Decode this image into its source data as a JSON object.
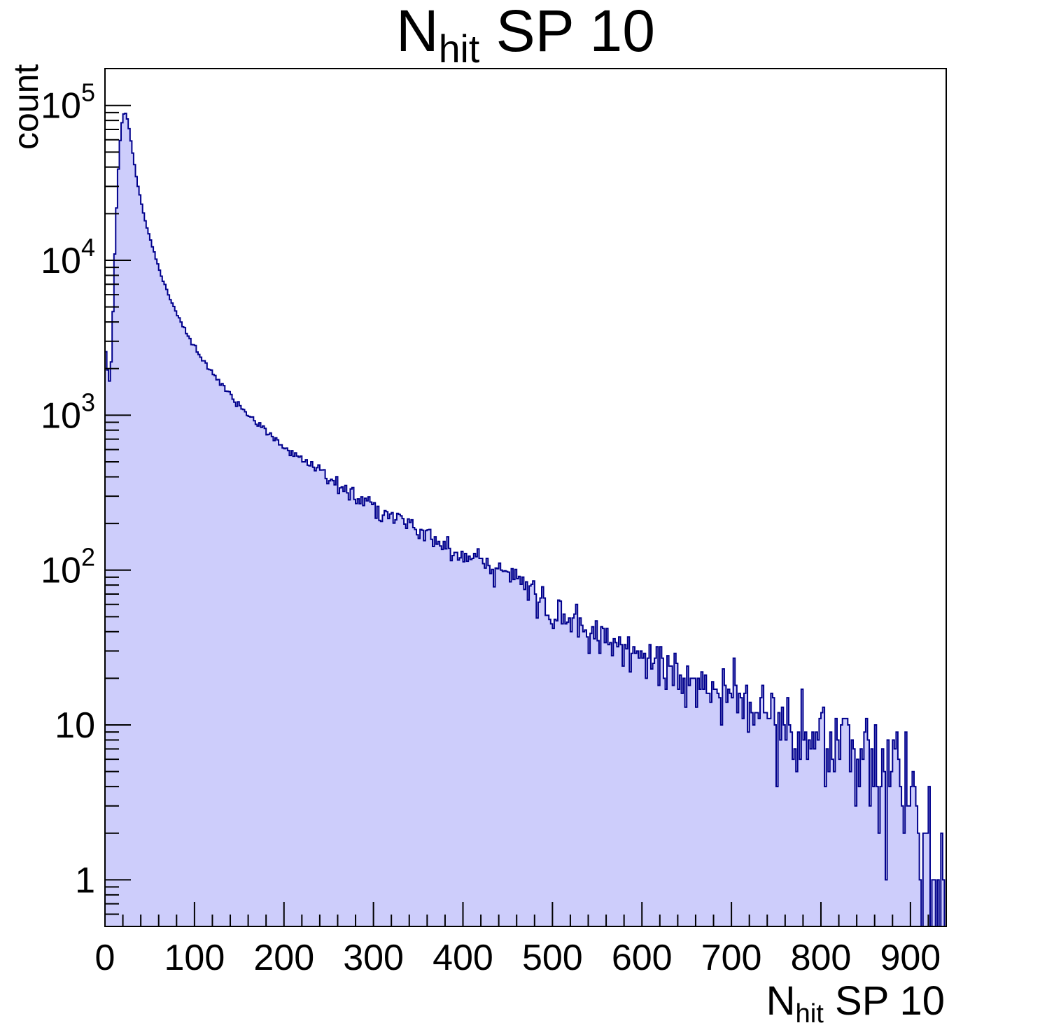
{
  "title": {
    "pre": "N",
    "sub": "hit",
    "post": " SP 10"
  },
  "y_axis": {
    "title": "count",
    "scale": "log",
    "labels": [
      {
        "mantissa": "1",
        "exp": "",
        "value": 1
      },
      {
        "mantissa": "10",
        "exp": "",
        "value": 10
      },
      {
        "mantissa": "10",
        "exp": "2",
        "value": 100
      },
      {
        "mantissa": "10",
        "exp": "3",
        "value": 1000
      },
      {
        "mantissa": "10",
        "exp": "4",
        "value": 10000
      },
      {
        "mantissa": "10",
        "exp": "5",
        "value": 100000
      }
    ]
  },
  "x_axis": {
    "title": {
      "pre": "N",
      "sub": "hit",
      "post": " SP 10"
    },
    "major_step": 100,
    "minor_step": 20,
    "labels": [
      {
        "text": "0",
        "value": 0
      },
      {
        "text": "100",
        "value": 100
      },
      {
        "text": "200",
        "value": 200
      },
      {
        "text": "300",
        "value": 300
      },
      {
        "text": "400",
        "value": 400
      },
      {
        "text": "500",
        "value": 500
      },
      {
        "text": "600",
        "value": 600
      },
      {
        "text": "700",
        "value": 700
      },
      {
        "text": "800",
        "value": 800
      },
      {
        "text": "900",
        "value": 900
      }
    ]
  },
  "colors": {
    "hist_fill": "#cdcdfb",
    "hist_line": "#00008c",
    "axis": "#000000",
    "background": "#ffffff",
    "text": "#000000"
  },
  "chart_data": {
    "type": "bar",
    "title": "N_hit SP 10",
    "xlabel": "N_hit SP 10",
    "ylabel": "count",
    "xlim": [
      0,
      940
    ],
    "ylim": [
      0.5,
      173000
    ],
    "yscale": "log",
    "grid": false,
    "legend": false,
    "bin_width": 2,
    "n_bins": 470,
    "peak": {
      "x": 21,
      "count": 91000
    },
    "first_bin": {
      "x": 1,
      "count": 2800
    },
    "dip": {
      "x": 5,
      "count": 1650
    },
    "noise_model": "poisson",
    "seed": 1337,
    "envelope_points": [
      [
        0,
        2800
      ],
      [
        2,
        2300
      ],
      [
        4,
        1700
      ],
      [
        6,
        1700
      ],
      [
        8,
        3000
      ],
      [
        10,
        7500
      ],
      [
        12,
        16000
      ],
      [
        14,
        30000
      ],
      [
        16,
        50000
      ],
      [
        18,
        70000
      ],
      [
        20,
        85000
      ],
      [
        22,
        91000
      ],
      [
        24,
        87000
      ],
      [
        26,
        77000
      ],
      [
        28,
        65000
      ],
      [
        30,
        54000
      ],
      [
        32,
        45000
      ],
      [
        34,
        38000
      ],
      [
        36,
        32500
      ],
      [
        38,
        28000
      ],
      [
        40,
        24500
      ],
      [
        44,
        19200
      ],
      [
        48,
        15500
      ],
      [
        52,
        12800
      ],
      [
        56,
        10700
      ],
      [
        60,
        9000
      ],
      [
        65,
        7400
      ],
      [
        70,
        6200
      ],
      [
        75,
        5300
      ],
      [
        80,
        4600
      ],
      [
        85,
        4000
      ],
      [
        90,
        3500
      ],
      [
        95,
        3100
      ],
      [
        100,
        2750
      ],
      [
        110,
        2250
      ],
      [
        120,
        1900
      ],
      [
        130,
        1600
      ],
      [
        140,
        1350
      ],
      [
        150,
        1150
      ],
      [
        160,
        1000
      ],
      [
        170,
        880
      ],
      [
        180,
        780
      ],
      [
        190,
        700
      ],
      [
        200,
        630
      ],
      [
        210,
        570
      ],
      [
        220,
        520
      ],
      [
        230,
        475
      ],
      [
        240,
        435
      ],
      [
        250,
        400
      ],
      [
        260,
        365
      ],
      [
        270,
        335
      ],
      [
        280,
        305
      ],
      [
        290,
        280
      ],
      [
        300,
        260
      ],
      [
        310,
        240
      ],
      [
        320,
        222
      ],
      [
        330,
        206
      ],
      [
        340,
        192
      ],
      [
        350,
        178
      ],
      [
        360,
        166
      ],
      [
        370,
        155
      ],
      [
        380,
        145
      ],
      [
        390,
        136
      ],
      [
        400,
        128
      ],
      [
        410,
        118
      ],
      [
        420,
        107
      ],
      [
        430,
        100
      ],
      [
        440,
        96
      ],
      [
        450,
        92
      ],
      [
        460,
        87
      ],
      [
        470,
        80
      ],
      [
        480,
        72
      ],
      [
        490,
        65
      ],
      [
        500,
        59
      ],
      [
        510,
        54
      ],
      [
        520,
        50
      ],
      [
        530,
        46
      ],
      [
        540,
        43
      ],
      [
        550,
        40
      ],
      [
        560,
        37
      ],
      [
        570,
        35
      ],
      [
        580,
        32.5
      ],
      [
        590,
        30.5
      ],
      [
        600,
        28.5
      ],
      [
        610,
        27
      ],
      [
        620,
        25.5
      ],
      [
        630,
        24
      ],
      [
        640,
        22.5
      ],
      [
        650,
        21
      ],
      [
        660,
        19.8
      ],
      [
        670,
        18.6
      ],
      [
        680,
        17.5
      ],
      [
        690,
        16.5
      ],
      [
        700,
        15.5
      ],
      [
        710,
        14.6
      ],
      [
        720,
        13.8
      ],
      [
        730,
        13
      ],
      [
        740,
        12.3
      ],
      [
        750,
        11.6
      ],
      [
        760,
        11
      ],
      [
        770,
        10.4
      ],
      [
        780,
        9.9
      ],
      [
        790,
        9.4
      ],
      [
        800,
        8.9
      ],
      [
        810,
        8.4
      ],
      [
        820,
        7.9
      ],
      [
        830,
        7.4
      ],
      [
        840,
        6.9
      ],
      [
        850,
        6.4
      ],
      [
        860,
        5.9
      ],
      [
        870,
        5.4
      ],
      [
        880,
        4.9
      ],
      [
        890,
        4.3
      ],
      [
        900,
        3.6
      ],
      [
        910,
        2.8
      ],
      [
        920,
        2.0
      ],
      [
        930,
        1.3
      ],
      [
        940,
        0.8
      ]
    ]
  }
}
